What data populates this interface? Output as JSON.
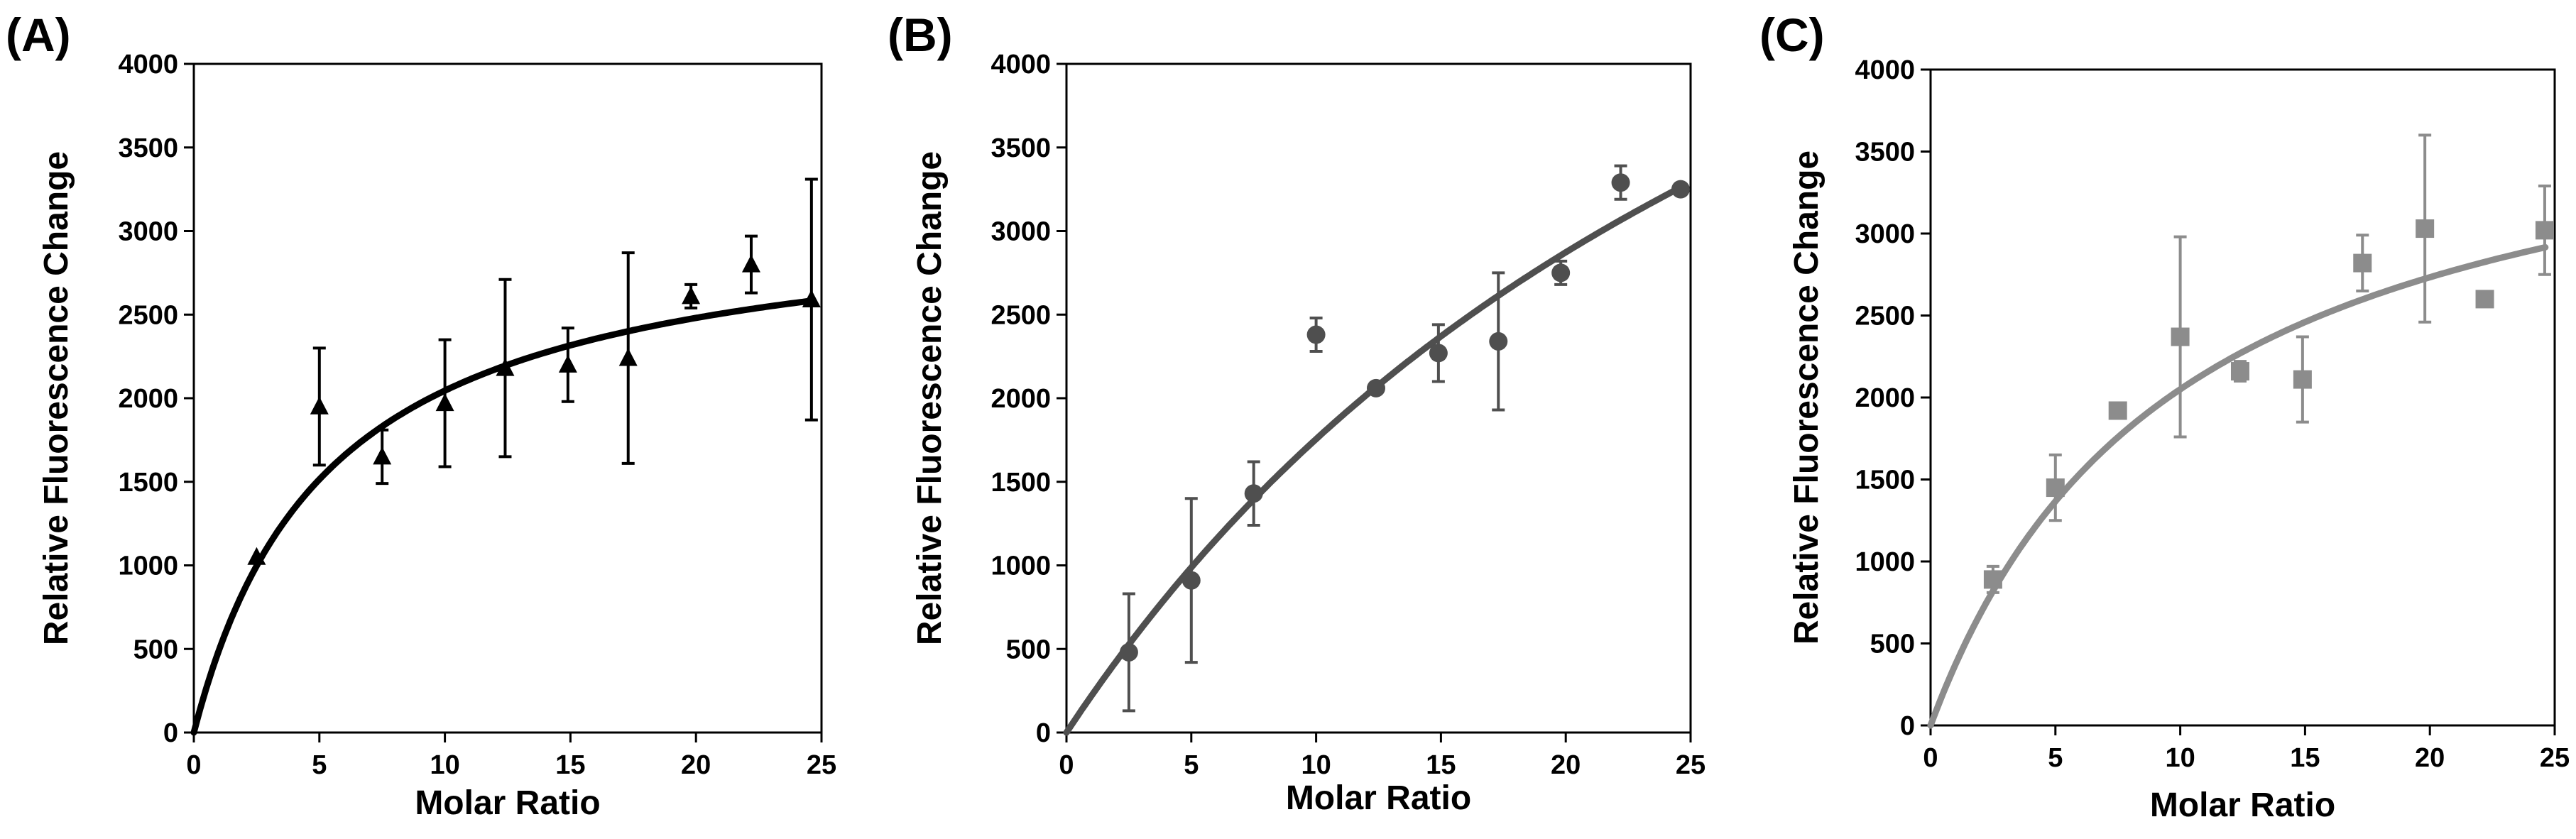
{
  "chart_data": [
    {
      "panel": "(A)",
      "type": "scatter",
      "xlabel": "Molar Ratio",
      "ylabel": "Relative Fluorescence Change",
      "xlim": [
        0,
        25
      ],
      "ylim": [
        0,
        4000
      ],
      "xticks": [
        "0",
        "5",
        "10",
        "15",
        "20",
        "25"
      ],
      "yticks": [
        "0",
        "500",
        "1000",
        "1500",
        "2000",
        "2500",
        "3000",
        "3500",
        "4000"
      ],
      "grid": false,
      "marker": "triangle",
      "color": "#000000",
      "points": [
        {
          "x": 2.5,
          "y": 1050,
          "err": 0
        },
        {
          "x": 5,
          "y": 1950,
          "err": 350
        },
        {
          "x": 7.5,
          "y": 1650,
          "err": 160
        },
        {
          "x": 10,
          "y": 1970,
          "err": 380
        },
        {
          "x": 12.4,
          "y": 2180,
          "err": 530
        },
        {
          "x": 14.9,
          "y": 2200,
          "err": 220
        },
        {
          "x": 17.3,
          "y": 2240,
          "err": 630
        },
        {
          "x": 19.8,
          "y": 2610,
          "err": 70
        },
        {
          "x": 22.2,
          "y": 2800,
          "err": 170
        },
        {
          "x": 24.6,
          "y": 2590,
          "err": 720
        }
      ],
      "fit": {
        "model": "Bmax*x/(Kd+x)",
        "Bmax": 3150,
        "Kd": 5.4
      }
    },
    {
      "panel": "(B)",
      "type": "scatter",
      "xlabel": "Molar Ratio",
      "ylabel": "Relative Fluorescence Change",
      "xlim": [
        0,
        25
      ],
      "ylim": [
        0,
        4000
      ],
      "xticks": [
        "0",
        "5",
        "10",
        "15",
        "20",
        "25"
      ],
      "yticks": [
        "0",
        "500",
        "1000",
        "1500",
        "2000",
        "2500",
        "3000",
        "3500",
        "4000"
      ],
      "grid": false,
      "marker": "circle",
      "color": "#4f4f4f",
      "points": [
        {
          "x": 2.5,
          "y": 480,
          "err": 350
        },
        {
          "x": 5,
          "y": 910,
          "err": 490
        },
        {
          "x": 7.5,
          "y": 1430,
          "err": 190
        },
        {
          "x": 10,
          "y": 2380,
          "err": 100
        },
        {
          "x": 12.4,
          "y": 2060,
          "err": 30
        },
        {
          "x": 14.9,
          "y": 2270,
          "err": 170
        },
        {
          "x": 17.3,
          "y": 2340,
          "err": 410
        },
        {
          "x": 19.8,
          "y": 2750,
          "err": 70
        },
        {
          "x": 22.2,
          "y": 3290,
          "err": 100
        },
        {
          "x": 24.6,
          "y": 3250,
          "err": 0
        }
      ],
      "fit": {
        "model": "Bmax*x/(Kd+x)",
        "Bmax": 7900,
        "Kd": 35
      }
    },
    {
      "panel": "(C)",
      "type": "scatter",
      "xlabel": "Molar Ratio",
      "ylabel": "Relative Fluorescence Change",
      "xlim": [
        0,
        25
      ],
      "ylim": [
        0,
        4000
      ],
      "xticks": [
        "0",
        "5",
        "10",
        "15",
        "20",
        "25"
      ],
      "yticks": [
        "0",
        "500",
        "1000",
        "1500",
        "2000",
        "2500",
        "3000",
        "3500",
        "4000"
      ],
      "grid": false,
      "marker": "square",
      "color": "#8c8c8c",
      "points": [
        {
          "x": 2.5,
          "y": 890,
          "err": 80
        },
        {
          "x": 5,
          "y": 1450,
          "err": 200
        },
        {
          "x": 7.5,
          "y": 1920,
          "err": 0
        },
        {
          "x": 10,
          "y": 2370,
          "err": 610
        },
        {
          "x": 12.4,
          "y": 2160,
          "err": 60
        },
        {
          "x": 14.9,
          "y": 2110,
          "err": 260
        },
        {
          "x": 17.3,
          "y": 2820,
          "err": 170
        },
        {
          "x": 19.8,
          "y": 3030,
          "err": 570
        },
        {
          "x": 22.2,
          "y": 2600,
          "err": 0
        },
        {
          "x": 24.6,
          "y": 3020,
          "err": 270
        }
      ],
      "fit": {
        "model": "Bmax*x/(Kd+x)",
        "Bmax": 4100,
        "Kd": 10
      }
    }
  ]
}
